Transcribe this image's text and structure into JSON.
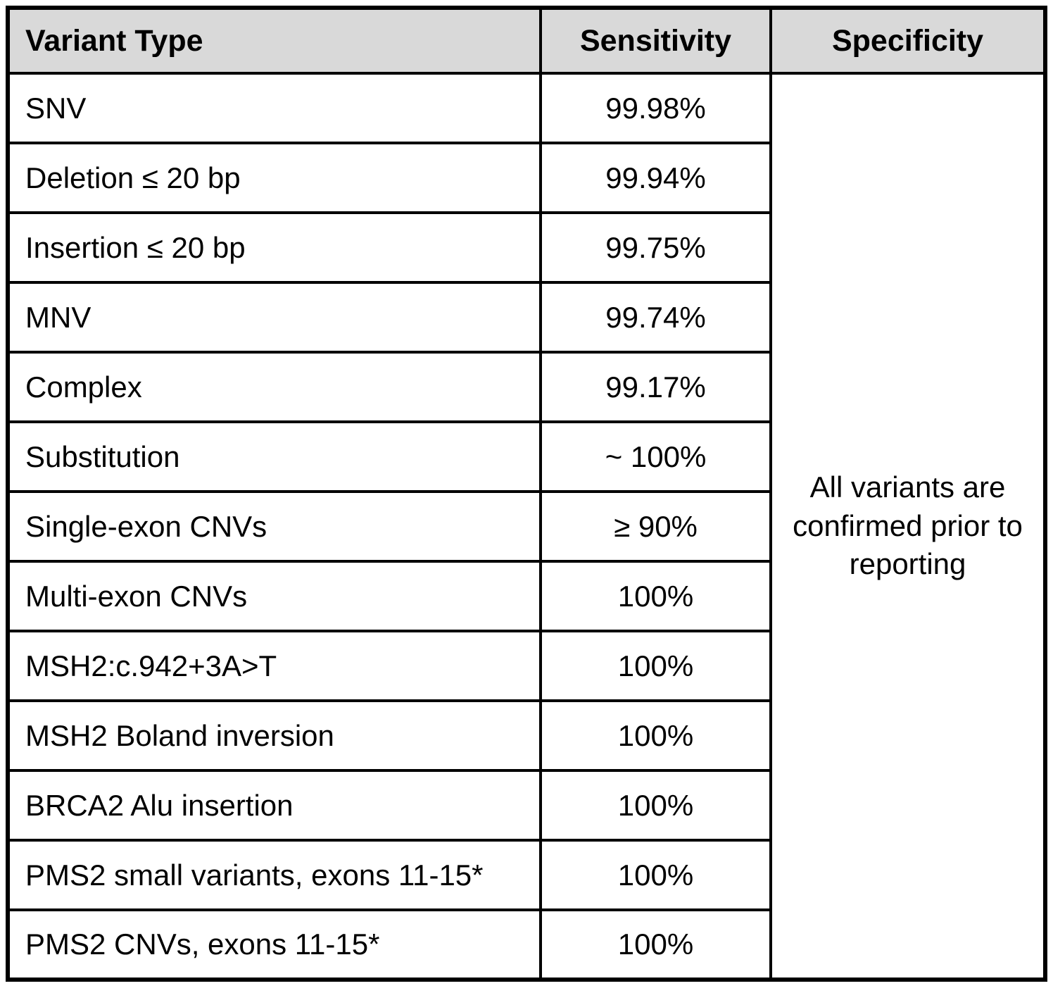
{
  "table": {
    "headers": {
      "variant_type": "Variant Type",
      "sensitivity": "Sensitivity",
      "specificity": "Specificity"
    },
    "rows": [
      {
        "variant": "SNV",
        "sensitivity": "99.98%"
      },
      {
        "variant": "Deletion ≤ 20 bp",
        "sensitivity": "99.94%"
      },
      {
        "variant": "Insertion ≤ 20 bp",
        "sensitivity": "99.75%"
      },
      {
        "variant": "MNV",
        "sensitivity": "99.74%"
      },
      {
        "variant": "Complex",
        "sensitivity": "99.17%"
      },
      {
        "variant": "Substitution",
        "sensitivity": "~ 100%"
      },
      {
        "variant": "Single-exon CNVs",
        "sensitivity": "≥ 90%"
      },
      {
        "variant": "Multi-exon CNVs",
        "sensitivity": "100%"
      },
      {
        "variant": "MSH2:c.942+3A>T",
        "sensitivity": "100%"
      },
      {
        "variant": "MSH2 Boland inversion",
        "sensitivity": "100%"
      },
      {
        "variant": "BRCA2 Alu insertion",
        "sensitivity": "100%"
      },
      {
        "variant": "PMS2 small variants, exons 11-15*",
        "sensitivity": "100%"
      },
      {
        "variant": "PMS2 CNVs, exons 11-15*",
        "sensitivity": "100%"
      }
    ],
    "specificity_note": "All variants are confirmed prior to reporting"
  },
  "colors": {
    "header_bg": "#d9d9d9",
    "border": "#000000",
    "text": "#000000",
    "page_bg": "#ffffff"
  }
}
